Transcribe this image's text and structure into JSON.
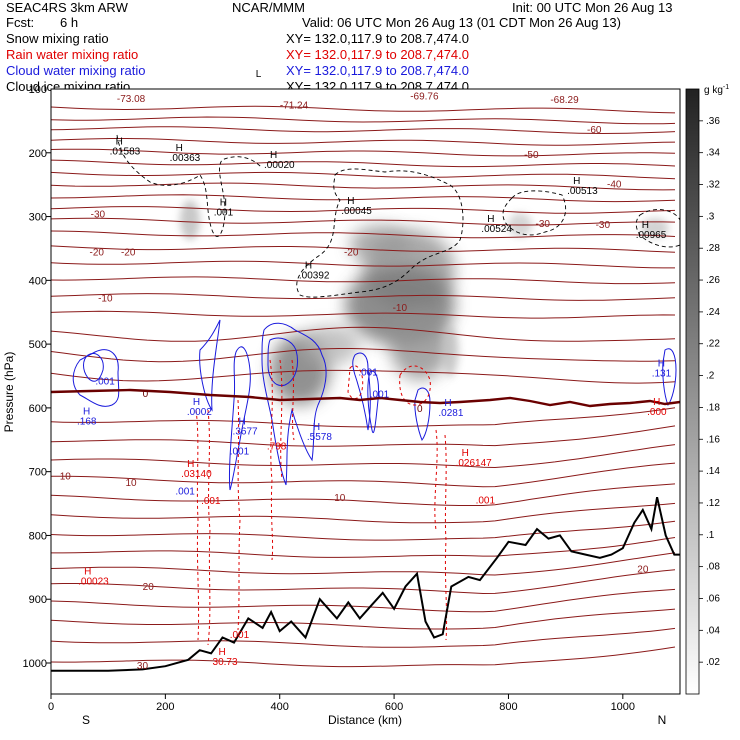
{
  "header": {
    "model": "SEAC4RS 3km ARW",
    "org": "NCAR/MMM",
    "init": "Init: 00 UTC Mon 26 Aug 13",
    "fcst_label": "Fcst:",
    "fcst_value": "6 h",
    "valid": "Valid: 06 UTC Mon 26 Aug 13 (01 CDT Mon 26 Aug 13)",
    "fields": [
      {
        "label": "Snow mixing ratio",
        "xy": "XY= 132.0,117.9 to 208.7,474.0",
        "color": "#000000"
      },
      {
        "label": "Rain water mixing ratio",
        "xy": "XY= 132.0,117.9 to 208.7,474.0",
        "color": "#e00000"
      },
      {
        "label": "Cloud water mixing ratio",
        "xy": "XY= 132.0,117.9 to 208.7,474.0",
        "color": "#1a1adc"
      },
      {
        "label": "Cloud ice mixing ratio",
        "xy": "XY= 132.0,117.9 to 208.7,474.0",
        "color": "#000000"
      }
    ]
  },
  "colors": {
    "temperature": "#8b1a1a",
    "freezing": "#6a0000",
    "rain": "#e00000",
    "cloud_water": "#1a1adc",
    "ice": "#000000",
    "terrain": "#000000"
  },
  "chart_data": {
    "type": "cross-section",
    "xlabel": "Distance (km)",
    "ylabel": "Pressure (hPa)",
    "xlim": [
      0,
      1100
    ],
    "ylim": [
      1050,
      100
    ],
    "x_ticks": [
      0,
      200,
      400,
      600,
      800,
      1000
    ],
    "y_ticks": [
      200,
      300,
      400,
      500,
      600,
      700,
      800,
      900,
      1000
    ],
    "y_tick_top_label": "100",
    "x_end_labels": {
      "left": "S",
      "right": "N"
    },
    "colorbar": {
      "units": "g kg",
      "units_exp": "-1",
      "ticks": [
        ".36",
        ".34",
        ".32",
        ".3",
        ".28",
        ".26",
        ".24",
        ".22",
        ".2",
        ".18",
        ".16",
        ".14",
        ".12",
        ".1",
        ".08",
        ".06",
        ".04",
        ".02"
      ],
      "min": 0,
      "max": 0.38
    },
    "temperature_contours": [
      {
        "label": "-73.08",
        "x": 140,
        "p": 114,
        "color": "temperature"
      },
      {
        "label": "-71.24",
        "x": 425,
        "p": 124,
        "color": "temperature"
      },
      {
        "label": "-69.76",
        "x": 653,
        "p": 110,
        "color": "temperature"
      },
      {
        "label": "-68.29",
        "x": 898,
        "p": 116,
        "color": "temperature"
      },
      {
        "label": "-60",
        "x": 950,
        "p": 163,
        "color": "temperature"
      },
      {
        "label": "-50",
        "x": 840,
        "p": 202,
        "color": "temperature"
      },
      {
        "label": "-40",
        "x": 985,
        "p": 248,
        "color": "temperature"
      },
      {
        "label": "-30",
        "x": 82,
        "p": 295,
        "color": "temperature"
      },
      {
        "label": "-30",
        "x": 860,
        "p": 310,
        "color": "temperature"
      },
      {
        "label": "-30",
        "x": 965,
        "p": 312,
        "color": "temperature"
      },
      {
        "label": "-20",
        "x": 80,
        "p": 355,
        "color": "temperature"
      },
      {
        "label": "-20",
        "x": 135,
        "p": 355,
        "color": "temperature"
      },
      {
        "label": "-20",
        "x": 525,
        "p": 355,
        "color": "temperature"
      },
      {
        "label": "-10",
        "x": 95,
        "p": 427,
        "color": "temperature"
      },
      {
        "label": "-10",
        "x": 610,
        "p": 442,
        "color": "temperature"
      },
      {
        "label": "0",
        "x": 165,
        "p": 577,
        "color": "freezing"
      },
      {
        "label": "0",
        "x": 645,
        "p": 600,
        "color": "freezing"
      },
      {
        "label": "10",
        "x": 25,
        "p": 706,
        "color": "temperature"
      },
      {
        "label": "10",
        "x": 140,
        "p": 716,
        "color": "temperature"
      },
      {
        "label": "10",
        "x": 505,
        "p": 740,
        "color": "temperature"
      },
      {
        "label": "20",
        "x": 170,
        "p": 879,
        "color": "temperature"
      },
      {
        "label": "20",
        "x": 1035,
        "p": 852,
        "color": "temperature"
      },
      {
        "label": "30",
        "x": 160,
        "p": 1003,
        "color": "temperature"
      }
    ],
    "maxima_labels": [
      {
        "symbol": "H",
        "value": ".01583",
        "x": 120,
        "p": 203,
        "color": "ice"
      },
      {
        "symbol": "H",
        "value": ".00363",
        "x": 225,
        "p": 213,
        "color": "ice"
      },
      {
        "symbol": "H",
        "value": ".00020",
        "x": 390,
        "p": 224,
        "color": "ice"
      },
      {
        "symbol": "H",
        "value": ".001",
        "x": 302,
        "p": 298,
        "color": "ice"
      },
      {
        "symbol": "H",
        "value": ".00045",
        "x": 525,
        "p": 296,
        "color": "ice"
      },
      {
        "symbol": "H",
        "value": ".00524",
        "x": 770,
        "p": 324,
        "color": "ice"
      },
      {
        "symbol": "H",
        "value": ".00513",
        "x": 920,
        "p": 265,
        "color": "ice"
      },
      {
        "symbol": "H",
        "value": ".00965",
        "x": 1040,
        "p": 334,
        "color": "ice"
      },
      {
        "symbol": "H",
        "value": ".00392",
        "x": 451,
        "p": 397,
        "color": "ice"
      },
      {
        "symbol": "L",
        "value": "",
        "x": 365,
        "p": 97,
        "color": "ice"
      },
      {
        "symbol": "",
        "value": ".001",
        "x": 95,
        "p": 563,
        "color": "cloud_water"
      },
      {
        "symbol": "H",
        "value": ".168",
        "x": 63,
        "p": 626,
        "color": "cloud_water"
      },
      {
        "symbol": "H",
        "value": ".0002",
        "x": 255,
        "p": 611,
        "color": "cloud_water"
      },
      {
        "symbol": "H",
        "value": ".3677",
        "x": 335,
        "p": 642,
        "color": "cloud_water"
      },
      {
        "symbol": "",
        "value": ".001",
        "x": 330,
        "p": 673,
        "color": "cloud_water"
      },
      {
        "symbol": "H",
        "value": ".5578",
        "x": 465,
        "p": 650,
        "color": "cloud_water"
      },
      {
        "symbol": "",
        "value": ".001",
        "x": 555,
        "p": 549,
        "color": "cloud_water"
      },
      {
        "symbol": "",
        "value": ".001",
        "x": 575,
        "p": 584,
        "color": "cloud_water"
      },
      {
        "symbol": "H",
        "value": ".0281",
        "x": 695,
        "p": 613,
        "color": "cloud_water"
      },
      {
        "symbol": "H",
        "value": ".131",
        "x": 1068,
        "p": 551,
        "color": "cloud_water"
      },
      {
        "symbol": "",
        "value": ".001",
        "x": 235,
        "p": 736,
        "color": "cloud_water"
      },
      {
        "symbol": "H",
        "value": ".03140",
        "x": 245,
        "p": 708,
        "color": "rain"
      },
      {
        "symbol": "",
        "value": ".001",
        "x": 280,
        "p": 751,
        "color": "rain"
      },
      {
        "symbol": "",
        "value": ".798",
        "x": 395,
        "p": 665,
        "color": "rain"
      },
      {
        "symbol": "H",
        "value": ".026147",
        "x": 725,
        "p": 691,
        "color": "rain"
      },
      {
        "symbol": "",
        "value": ".001",
        "x": 760,
        "p": 750,
        "color": "rain"
      },
      {
        "symbol": "H",
        "value": ".000",
        "x": 1060,
        "p": 611,
        "color": "rain"
      },
      {
        "symbol": "H",
        "value": ".00023",
        "x": 65,
        "p": 877,
        "color": "rain"
      },
      {
        "symbol": "",
        "value": ".001",
        "x": 330,
        "p": 961,
        "color": "rain"
      },
      {
        "symbol": "H",
        "value": "30.73",
        "x": 300,
        "p": 1003,
        "color": "rain"
      }
    ],
    "terrain": {
      "x": [
        0,
        100,
        160,
        200,
        240,
        260,
        280,
        300,
        320,
        345,
        370,
        385,
        400,
        420,
        445,
        470,
        500,
        520,
        540,
        560,
        580,
        600,
        620,
        640,
        655,
        670,
        685,
        700,
        730,
        750,
        780,
        800,
        830,
        850,
        870,
        890,
        910,
        935,
        960,
        980,
        1000,
        1020,
        1035,
        1050,
        1060,
        1075,
        1090,
        1100
      ],
      "p": [
        1012,
        1012,
        1010,
        1005,
        995,
        980,
        985,
        960,
        968,
        930,
        945,
        920,
        950,
        935,
        960,
        900,
        930,
        905,
        930,
        910,
        890,
        915,
        880,
        860,
        935,
        960,
        955,
        880,
        865,
        870,
        835,
        810,
        815,
        790,
        805,
        800,
        825,
        830,
        835,
        830,
        820,
        780,
        760,
        790,
        740,
        800,
        830,
        830
      ]
    }
  }
}
